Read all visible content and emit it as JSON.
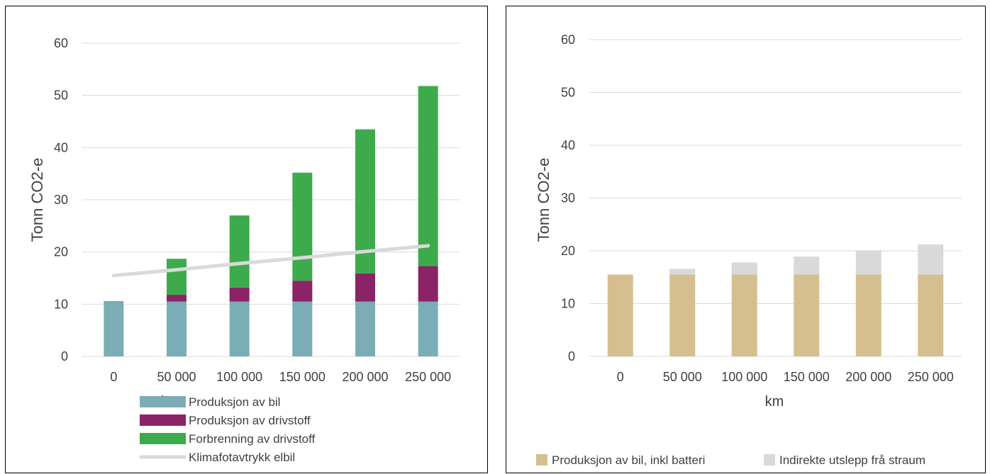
{
  "chart_data": [
    {
      "type": "bar",
      "stacked": true,
      "ylabel": "Tonn CO2-e",
      "xlabel": "km",
      "ylim": [
        0,
        60
      ],
      "yticks": [
        "0",
        "10",
        "20",
        "30",
        "40",
        "50",
        "60"
      ],
      "categories": [
        "0",
        "50 000",
        "100 000",
        "150 000",
        "200 000",
        "250 000"
      ],
      "series": [
        {
          "name": "Produksjon av bil",
          "type": "bar",
          "color": "#7aadb6",
          "values": [
            10.6,
            10.5,
            10.5,
            10.5,
            10.5,
            10.5
          ]
        },
        {
          "name": "Produksjon av drivstoff",
          "type": "bar",
          "color": "#8b2367",
          "values": [
            0,
            1.3,
            2.7,
            4.0,
            5.4,
            6.8
          ]
        },
        {
          "name": "Forbrenning av drivstoff",
          "type": "bar",
          "color": "#3dab4b",
          "values": [
            0,
            6.9,
            13.8,
            20.7,
            27.6,
            34.5
          ]
        },
        {
          "name": "Klimafotavtrykk elbil",
          "type": "line",
          "color": "#d9d9d9",
          "values": [
            15.5,
            16.6,
            17.8,
            18.9,
            20.1,
            21.2
          ]
        }
      ],
      "legend": "bottom",
      "grid": true
    },
    {
      "type": "bar",
      "stacked": true,
      "ylabel": "Tonn CO2-e",
      "xlabel": "km",
      "ylim": [
        0,
        60
      ],
      "yticks": [
        "0",
        "10",
        "20",
        "30",
        "40",
        "50",
        "60"
      ],
      "categories": [
        "0",
        "50 000",
        "100 000",
        "150 000",
        "200 000",
        "250 000"
      ],
      "series": [
        {
          "name": "Produksjon av bil, inkl batteri",
          "type": "bar",
          "color": "#d5bf8f",
          "values": [
            15.5,
            15.5,
            15.5,
            15.5,
            15.5,
            15.5
          ]
        },
        {
          "name": "Indirekte utslepp frå straum",
          "type": "bar",
          "color": "#d9d9d9",
          "values": [
            0,
            1.1,
            2.3,
            3.4,
            4.6,
            5.7
          ]
        }
      ],
      "legend": "bottom",
      "grid": true
    }
  ]
}
